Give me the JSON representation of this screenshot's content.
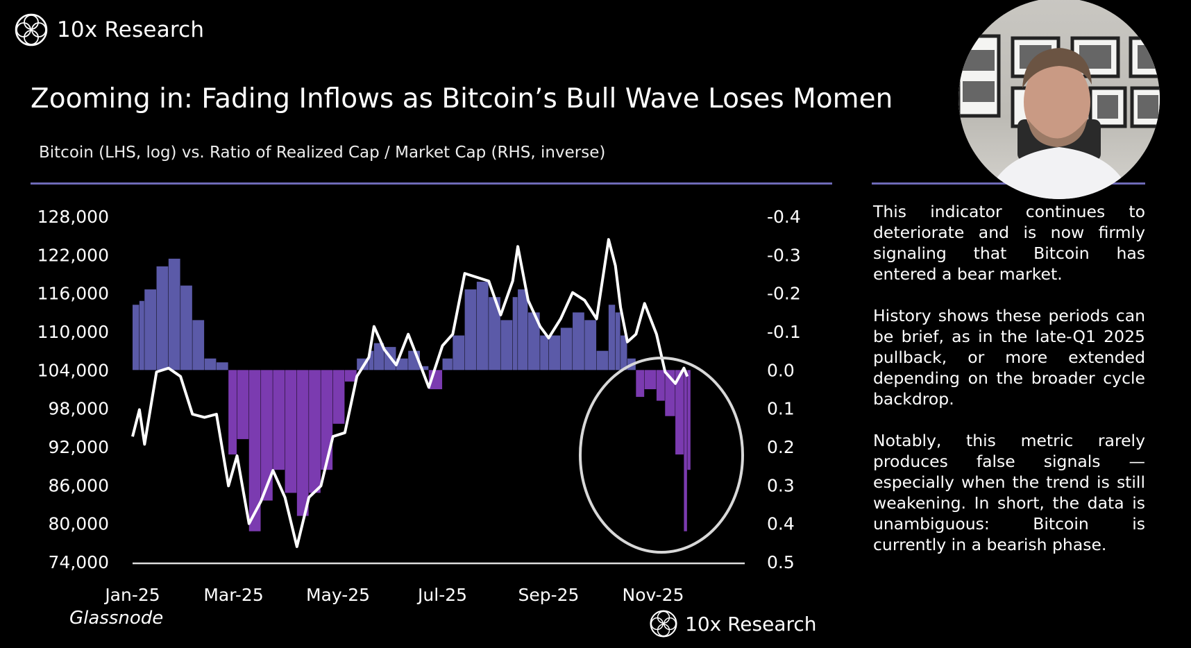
{
  "brand": {
    "name": "10x Research",
    "logo_icon": "globe-mesh-icon"
  },
  "title": "Zooming in: Fading Inflows as Bitcoin’s Bull Wave Loses Momen",
  "subtitle": "Bitcoin (LHS, log) vs. Ratio of Realized Cap / Market Cap (RHS, inverse)",
  "source": "Glassnode",
  "footer_brand": "10x Research",
  "commentary": [
    "This indicator continues to deteriorate and is now firmly signaling that Bitcoin has entered a bear market.",
    "History shows these periods can be brief, as in the late-Q1 2025 pullback, or more extended depending on the broader cycle backdrop.",
    "Notably, this metric rarely produces false signals — especially when the trend is still weakening. In short, the data is unambiguous: Bitcoin is currently in a bearish phase."
  ],
  "colors": {
    "accent_rule": "#6e6ab8",
    "bar_positive_side": "#5b5aa8",
    "bar_negative_side": "#7b3bb0",
    "price_line": "#ffffff",
    "highlight_circle": "#d8d8d8"
  },
  "chart_data": {
    "type": "bar+line",
    "title": "Bitcoin (LHS, log) vs. Ratio of Realized Cap / Market Cap (RHS, inverse)",
    "left_axis": {
      "label": "Bitcoin",
      "ticks": [
        "128,000",
        "122,000",
        "116,000",
        "110,000",
        "104,000",
        "98,000",
        "92,000",
        "86,000",
        "80,000",
        "74,000"
      ],
      "range": [
        74000,
        128000
      ],
      "scale": "log"
    },
    "right_axis": {
      "label": "Ratio of Realized Cap / Market Cap",
      "ticks": [
        "-0.4",
        "-0.3",
        "-0.2",
        "-0.1",
        "0.0",
        "0.1",
        "0.2",
        "0.3",
        "0.4",
        "0.5"
      ],
      "range": [
        -0.4,
        0.5
      ],
      "inverse": true
    },
    "x_ticks": [
      "Jan-25",
      "Mar-25",
      "May-25",
      "Jul-25",
      "Sep-25",
      "Nov-25"
    ],
    "grid": false,
    "annotation": "circle highlighting Nov-25 decline",
    "dates": [
      "2025-01-01",
      "2025-01-05",
      "2025-01-08",
      "2025-01-15",
      "2025-01-22",
      "2025-01-29",
      "2025-02-05",
      "2025-02-12",
      "2025-02-19",
      "2025-02-26",
      "2025-03-03",
      "2025-03-10",
      "2025-03-17",
      "2025-03-24",
      "2025-03-31",
      "2025-04-07",
      "2025-04-14",
      "2025-04-21",
      "2025-04-28",
      "2025-05-05",
      "2025-05-12",
      "2025-05-19",
      "2025-05-22",
      "2025-05-28",
      "2025-06-04",
      "2025-06-11",
      "2025-06-18",
      "2025-06-23",
      "2025-07-01",
      "2025-07-07",
      "2025-07-14",
      "2025-07-21",
      "2025-07-28",
      "2025-08-04",
      "2025-08-11",
      "2025-08-14",
      "2025-08-20",
      "2025-08-27",
      "2025-09-01",
      "2025-09-08",
      "2025-09-15",
      "2025-09-22",
      "2025-09-29",
      "2025-10-06",
      "2025-10-10",
      "2025-10-13",
      "2025-10-17",
      "2025-10-22",
      "2025-10-27",
      "2025-11-03",
      "2025-11-08",
      "2025-11-14",
      "2025-11-19",
      "2025-11-21"
    ],
    "series": [
      {
        "name": "Bitcoin",
        "axis": "left",
        "type": "line",
        "values": [
          93600,
          97800,
          92400,
          103700,
          104300,
          103000,
          97100,
          96600,
          97100,
          85900,
          90600,
          80000,
          83500,
          88300,
          84100,
          76400,
          84100,
          85900,
          93600,
          94200,
          103000,
          106000,
          110800,
          107200,
          104800,
          109600,
          104800,
          101300,
          107800,
          109600,
          119100,
          118500,
          117900,
          112600,
          117900,
          123300,
          114900,
          110800,
          109000,
          112000,
          116100,
          114900,
          112000,
          124400,
          120300,
          113800,
          108400,
          109600,
          114400,
          109600,
          103700,
          101900,
          104300,
          103000
        ]
      },
      {
        "name": "Ratio of Realized Cap / Market Cap",
        "axis": "right",
        "type": "bar",
        "values": [
          -0.17,
          -0.18,
          -0.21,
          -0.27,
          -0.29,
          -0.22,
          -0.13,
          -0.03,
          -0.02,
          0.22,
          0.18,
          0.42,
          0.34,
          0.26,
          0.32,
          0.38,
          0.32,
          0.26,
          0.14,
          0.03,
          -0.03,
          -0.05,
          -0.07,
          -0.06,
          -0.03,
          -0.05,
          -0.01,
          0.05,
          -0.03,
          -0.09,
          -0.21,
          -0.23,
          -0.19,
          -0.13,
          -0.19,
          -0.21,
          -0.15,
          -0.09,
          -0.09,
          -0.11,
          -0.15,
          -0.13,
          -0.05,
          -0.17,
          -0.15,
          -0.09,
          -0.03,
          0.07,
          0.05,
          0.08,
          0.12,
          0.22,
          0.42,
          0.26
        ]
      }
    ]
  }
}
